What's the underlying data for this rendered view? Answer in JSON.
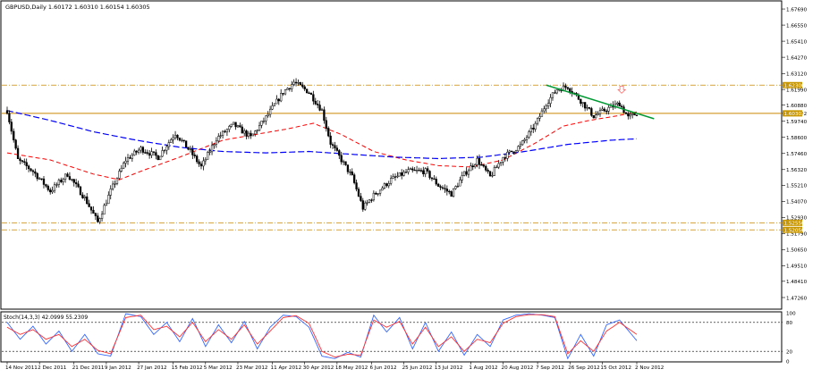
{
  "header": {
    "title": "GBPUSD,Daily  1.60172 1.60310 1.60154 1.60305"
  },
  "indicator": {
    "label": "Stoch(14,3,3) 42.0999 55.2309"
  },
  "colors": {
    "background": "#ffffff",
    "candle": "#000000",
    "ma_fast": "#ff0000",
    "ma_slow": "#0000ff",
    "trendline": "#009933",
    "level_line": "#cc8800",
    "level_tag": "#c89600",
    "stoch_main": "#3366ff",
    "stoch_signal": "#ff3333",
    "arrow": "#ff6666"
  },
  "chart_data": [
    {
      "type": "candlestick",
      "ylim": [
        1.465,
        1.682
      ],
      "y_ticks": [
        "1.67690",
        "1.66550",
        "1.65410",
        "1.64270",
        "1.63120",
        "1.61990",
        "1.60880",
        "1.60302",
        "1.59740",
        "1.58600",
        "1.57460",
        "1.56320",
        "1.55210",
        "1.54070",
        "1.52930",
        "1.51790",
        "1.50650",
        "1.49510",
        "1.48410",
        "1.47260"
      ],
      "y_tick_values": [
        1.6769,
        1.6655,
        1.6541,
        1.6427,
        1.6312,
        1.6199,
        1.6088,
        1.60302,
        1.5974,
        1.586,
        1.5746,
        1.5632,
        1.5521,
        1.5407,
        1.5293,
        1.5179,
        1.5065,
        1.4951,
        1.4841,
        1.4726
      ],
      "x_labels": [
        "14 Nov 2011",
        "2 Dec 2011",
        "21 Dec 2011",
        "9 Jan 2012",
        "27 Jan 2012",
        "15 Feb 2012",
        "5 Mar 2012",
        "23 Mar 2012",
        "11 Apr 2012",
        "30 Apr 2012",
        "18 May 2012",
        "6 Jun 2012",
        "25 Jun 2012",
        "13 Jul 2012",
        "1 Aug 2012",
        "20 Aug 2012",
        "7 Sep 2012",
        "26 Sep 2012",
        "15 Oct 2012",
        "2 Nov 2012"
      ],
      "price_path": [
        [
          0,
          1.605
        ],
        [
          5,
          1.57
        ],
        [
          12,
          1.562
        ],
        [
          20,
          1.548
        ],
        [
          28,
          1.56
        ],
        [
          36,
          1.543
        ],
        [
          42,
          1.526
        ],
        [
          48,
          1.548
        ],
        [
          55,
          1.57
        ],
        [
          62,
          1.578
        ],
        [
          70,
          1.572
        ],
        [
          78,
          1.589
        ],
        [
          85,
          1.576
        ],
        [
          90,
          1.565
        ],
        [
          97,
          1.585
        ],
        [
          105,
          1.595
        ],
        [
          113,
          1.586
        ],
        [
          120,
          1.6
        ],
        [
          128,
          1.618
        ],
        [
          133,
          1.625
        ],
        [
          140,
          1.618
        ],
        [
          146,
          1.605
        ],
        [
          150,
          1.582
        ],
        [
          155,
          1.57
        ],
        [
          160,
          1.558
        ],
        [
          165,
          1.536
        ],
        [
          170,
          1.545
        ],
        [
          178,
          1.556
        ],
        [
          186,
          1.562
        ],
        [
          194,
          1.562
        ],
        [
          200,
          1.552
        ],
        [
          206,
          1.546
        ],
        [
          212,
          1.56
        ],
        [
          218,
          1.57
        ],
        [
          224,
          1.558
        ],
        [
          230,
          1.572
        ],
        [
          238,
          1.58
        ],
        [
          245,
          1.595
        ],
        [
          250,
          1.61
        ],
        [
          255,
          1.62
        ],
        [
          260,
          1.622
        ],
        [
          266,
          1.612
        ],
        [
          272,
          1.601
        ],
        [
          278,
          1.606
        ],
        [
          284,
          1.61
        ],
        [
          288,
          1.6
        ],
        [
          292,
          1.603
        ]
      ],
      "ma_fast": [
        [
          0,
          1.575
        ],
        [
          20,
          1.57
        ],
        [
          40,
          1.56
        ],
        [
          52,
          1.556
        ],
        [
          62,
          1.562
        ],
        [
          80,
          1.572
        ],
        [
          100,
          1.584
        ],
        [
          115,
          1.588
        ],
        [
          130,
          1.592
        ],
        [
          142,
          1.596
        ],
        [
          155,
          1.588
        ],
        [
          170,
          1.576
        ],
        [
          185,
          1.57
        ],
        [
          200,
          1.566
        ],
        [
          215,
          1.565
        ],
        [
          230,
          1.57
        ],
        [
          245,
          1.582
        ],
        [
          258,
          1.594
        ],
        [
          270,
          1.598
        ],
        [
          282,
          1.601
        ],
        [
          292,
          1.604
        ]
      ],
      "ma_slow": [
        [
          0,
          1.605
        ],
        [
          20,
          1.598
        ],
        [
          40,
          1.59
        ],
        [
          60,
          1.584
        ],
        [
          80,
          1.579
        ],
        [
          100,
          1.576
        ],
        [
          120,
          1.575
        ],
        [
          140,
          1.576
        ],
        [
          160,
          1.574
        ],
        [
          180,
          1.572
        ],
        [
          200,
          1.571
        ],
        [
          220,
          1.572
        ],
        [
          240,
          1.576
        ],
        [
          260,
          1.581
        ],
        [
          280,
          1.584
        ],
        [
          292,
          1.585
        ]
      ],
      "horizontal_levels": [
        1.623,
        1.603,
        1.5205,
        1.5255
      ],
      "level_tags": [
        "1.62300",
        "1.60302",
        "1.52050",
        "1.52550"
      ],
      "trendline": [
        [
          250,
          1.623
        ],
        [
          292,
          1.603
        ]
      ],
      "bars": 293
    },
    {
      "type": "line",
      "ylim": [
        0,
        100
      ],
      "y_ticks": [
        "100",
        "80",
        "20",
        "0"
      ],
      "y_tick_values": [
        100,
        80,
        20,
        0
      ],
      "levels": [
        80,
        20
      ],
      "series": [
        {
          "values_path": [
            [
              0,
              80
            ],
            [
              6,
              45
            ],
            [
              12,
              72
            ],
            [
              18,
              35
            ],
            [
              24,
              62
            ],
            [
              30,
              20
            ],
            [
              36,
              55
            ],
            [
              42,
              15
            ],
            [
              48,
              10
            ],
            [
              55,
              98
            ],
            [
              62,
              92
            ],
            [
              68,
              55
            ],
            [
              74,
              80
            ],
            [
              80,
              40
            ],
            [
              86,
              88
            ],
            [
              92,
              30
            ],
            [
              98,
              75
            ],
            [
              104,
              38
            ],
            [
              110,
              82
            ],
            [
              116,
              25
            ],
            [
              122,
              70
            ],
            [
              128,
              95
            ],
            [
              134,
              92
            ],
            [
              140,
              70
            ],
            [
              146,
              10
            ],
            [
              152,
              5
            ],
            [
              158,
              18
            ],
            [
              164,
              8
            ],
            [
              170,
              95
            ],
            [
              176,
              60
            ],
            [
              182,
              90
            ],
            [
              188,
              25
            ],
            [
              194,
              80
            ],
            [
              200,
              20
            ],
            [
              206,
              60
            ],
            [
              212,
              12
            ],
            [
              218,
              55
            ],
            [
              224,
              30
            ],
            [
              230,
              85
            ],
            [
              236,
              95
            ],
            [
              242,
              98
            ],
            [
              248,
              95
            ],
            [
              254,
              90
            ],
            [
              260,
              5
            ],
            [
              266,
              55
            ],
            [
              272,
              10
            ],
            [
              278,
              75
            ],
            [
              284,
              85
            ],
            [
              292,
              42
            ]
          ]
        },
        {
          "values_path": [
            [
              0,
              70
            ],
            [
              6,
              55
            ],
            [
              12,
              65
            ],
            [
              18,
              45
            ],
            [
              24,
              55
            ],
            [
              30,
              30
            ],
            [
              36,
              45
            ],
            [
              42,
              22
            ],
            [
              48,
              15
            ],
            [
              55,
              90
            ],
            [
              62,
              95
            ],
            [
              68,
              65
            ],
            [
              74,
              72
            ],
            [
              80,
              50
            ],
            [
              86,
              80
            ],
            [
              92,
              40
            ],
            [
              98,
              65
            ],
            [
              104,
              45
            ],
            [
              110,
              75
            ],
            [
              116,
              35
            ],
            [
              122,
              62
            ],
            [
              128,
              90
            ],
            [
              134,
              94
            ],
            [
              140,
              78
            ],
            [
              146,
              20
            ],
            [
              152,
              8
            ],
            [
              158,
              14
            ],
            [
              164,
              12
            ],
            [
              170,
              85
            ],
            [
              176,
              70
            ],
            [
              182,
              82
            ],
            [
              188,
              35
            ],
            [
              194,
              70
            ],
            [
              200,
              30
            ],
            [
              206,
              50
            ],
            [
              212,
              20
            ],
            [
              218,
              45
            ],
            [
              224,
              38
            ],
            [
              230,
              78
            ],
            [
              236,
              92
            ],
            [
              242,
              96
            ],
            [
              248,
              96
            ],
            [
              254,
              92
            ],
            [
              260,
              15
            ],
            [
              266,
              42
            ],
            [
              272,
              20
            ],
            [
              278,
              62
            ],
            [
              284,
              80
            ],
            [
              292,
              55
            ]
          ]
        }
      ]
    }
  ]
}
